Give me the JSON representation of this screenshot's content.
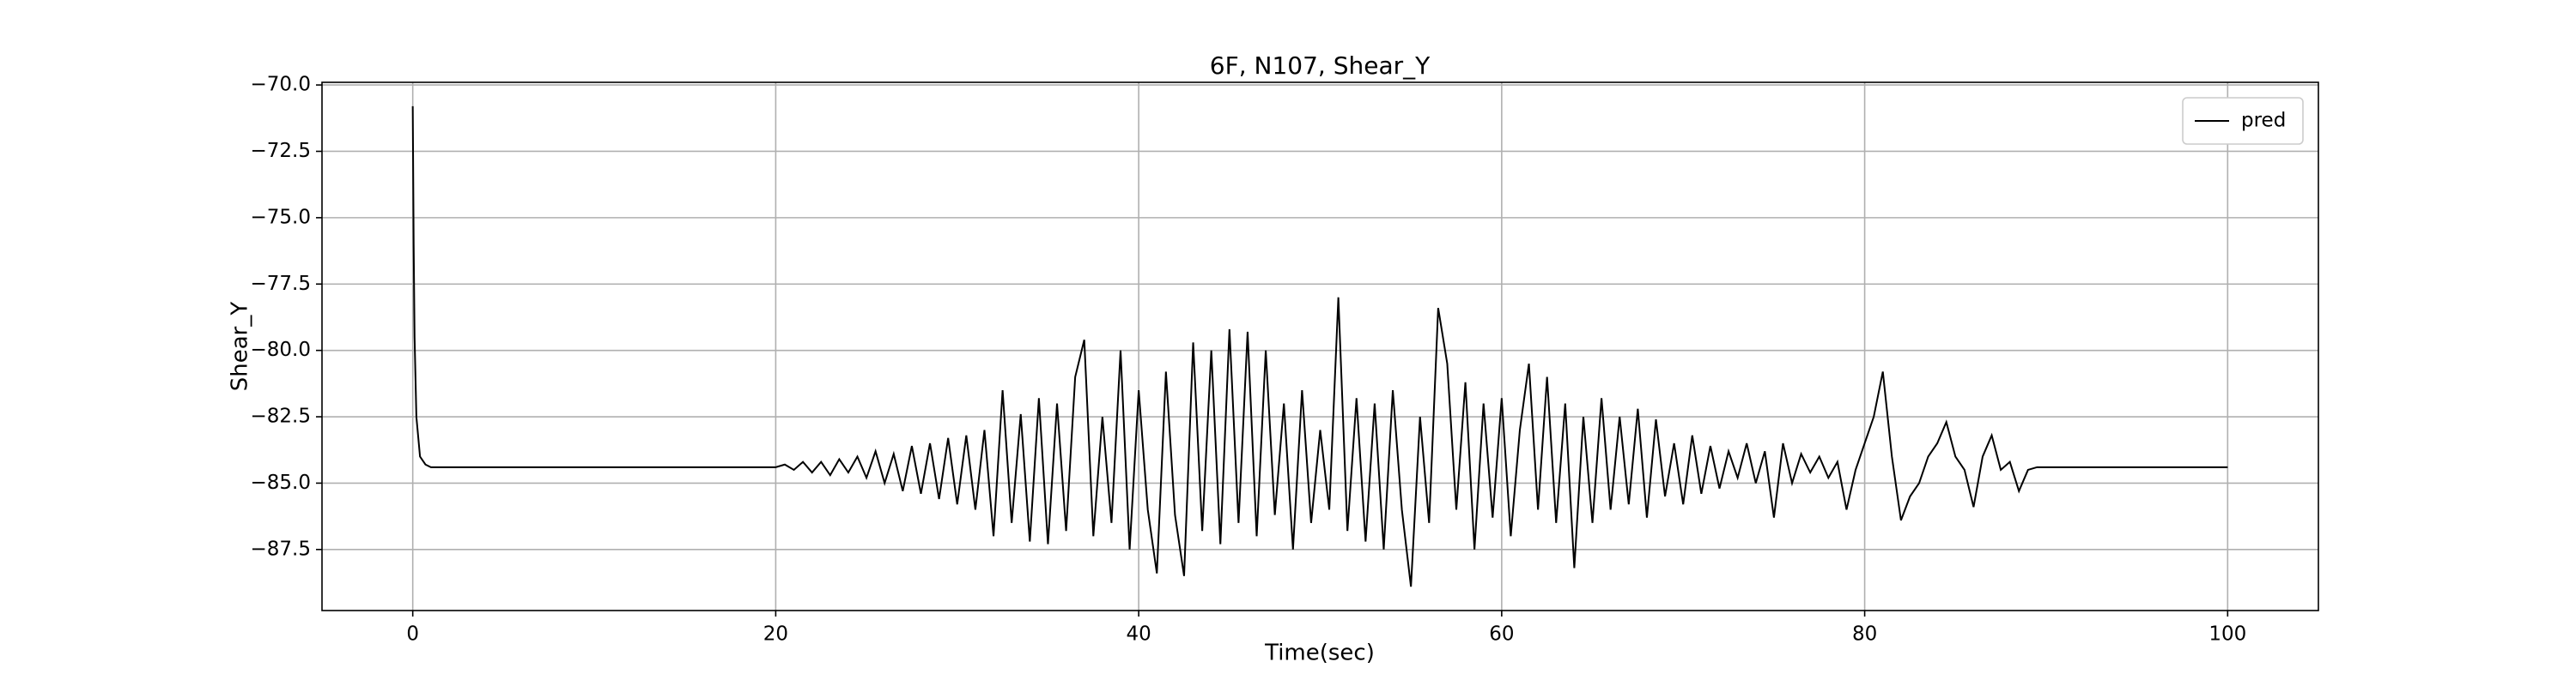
{
  "chart_data": {
    "type": "line",
    "title": "6F, N107, Shear_Y",
    "xlabel": "Time(sec)",
    "ylabel": "Shear_Y",
    "x": [
      0,
      0.05,
      0.1,
      0.2,
      0.4,
      0.7,
      1,
      2,
      3,
      4,
      5,
      6,
      7,
      8,
      9,
      10,
      11,
      12,
      13,
      14,
      15,
      16,
      17,
      18,
      19,
      20,
      20.5,
      21,
      21.5,
      22,
      22.5,
      23,
      23.5,
      24,
      24.5,
      25,
      25.5,
      26,
      26.5,
      27,
      27.5,
      28,
      28.5,
      29,
      29.5,
      30,
      30.5,
      31,
      31.5,
      32,
      32.5,
      33,
      33.5,
      34,
      34.5,
      35,
      35.5,
      36,
      36.5,
      37,
      37.5,
      38,
      38.5,
      39,
      39.5,
      40,
      40.5,
      41,
      41.5,
      42,
      42.5,
      43,
      43.5,
      44,
      44.5,
      45,
      45.5,
      46,
      46.5,
      47,
      47.5,
      48,
      48.5,
      49,
      49.5,
      50,
      50.5,
      51,
      51.5,
      52,
      52.5,
      53,
      53.5,
      54,
      54.5,
      55,
      55.5,
      56,
      56.5,
      57,
      57.5,
      58,
      58.5,
      59,
      59.5,
      60,
      60.5,
      61,
      61.5,
      62,
      62.5,
      63,
      63.5,
      64,
      64.5,
      65,
      65.5,
      66,
      66.5,
      67,
      67.5,
      68,
      68.5,
      69,
      69.5,
      70,
      70.5,
      71,
      71.5,
      72,
      72.5,
      73,
      73.5,
      74,
      74.5,
      75,
      75.5,
      76,
      76.5,
      77,
      77.5,
      78,
      78.5,
      79,
      79.5,
      80,
      80.5,
      81,
      81.5,
      82,
      82.5,
      83,
      83.5,
      84,
      84.5,
      85,
      85.5,
      86,
      86.5,
      87,
      87.5,
      88,
      88.5,
      89,
      89.5,
      90,
      91,
      92,
      93,
      94,
      95,
      96,
      97,
      98,
      99,
      100
    ],
    "series": [
      {
        "name": "pred",
        "color": "#000000",
        "values": [
          -70.8,
          -76,
          -79.5,
          -82.5,
          -84.0,
          -84.3,
          -84.4,
          -84.4,
          -84.4,
          -84.4,
          -84.4,
          -84.4,
          -84.4,
          -84.4,
          -84.4,
          -84.4,
          -84.4,
          -84.4,
          -84.4,
          -84.4,
          -84.4,
          -84.4,
          -84.4,
          -84.4,
          -84.4,
          -84.4,
          -84.3,
          -84.5,
          -84.2,
          -84.6,
          -84.2,
          -84.7,
          -84.1,
          -84.6,
          -84.0,
          -84.8,
          -83.8,
          -85.0,
          -83.9,
          -85.3,
          -83.6,
          -85.4,
          -83.5,
          -85.6,
          -83.3,
          -85.8,
          -83.2,
          -86.0,
          -83.0,
          -87.0,
          -81.5,
          -86.5,
          -82.4,
          -87.2,
          -81.8,
          -87.3,
          -82.0,
          -86.8,
          -81.0,
          -79.6,
          -87.0,
          -82.5,
          -86.5,
          -80.0,
          -87.5,
          -81.5,
          -86.0,
          -88.4,
          -80.8,
          -86.2,
          -88.5,
          -79.7,
          -86.8,
          -80.0,
          -87.3,
          -79.2,
          -86.5,
          -79.3,
          -87.0,
          -80.0,
          -86.2,
          -82.0,
          -87.5,
          -81.5,
          -86.5,
          -83.0,
          -86.0,
          -78.0,
          -86.8,
          -81.8,
          -87.2,
          -82.0,
          -87.5,
          -81.5,
          -86.0,
          -88.9,
          -82.5,
          -86.5,
          -78.4,
          -80.5,
          -86.0,
          -81.2,
          -87.5,
          -82.0,
          -86.3,
          -81.8,
          -87.0,
          -83.0,
          -80.5,
          -86.0,
          -81.0,
          -86.5,
          -82.0,
          -88.2,
          -82.5,
          -86.5,
          -81.8,
          -86.0,
          -82.5,
          -85.8,
          -82.2,
          -86.3,
          -82.6,
          -85.5,
          -83.5,
          -85.8,
          -83.2,
          -85.4,
          -83.6,
          -85.2,
          -83.8,
          -84.8,
          -83.5,
          -85.0,
          -83.8,
          -86.3,
          -83.5,
          -85.0,
          -83.9,
          -84.6,
          -84.0,
          -84.8,
          -84.2,
          -86.0,
          -84.5,
          -83.5,
          -82.5,
          -80.8,
          -84.0,
          -86.4,
          -85.5,
          -85.0,
          -84.0,
          -83.5,
          -82.7,
          -84.0,
          -84.5,
          -85.9,
          -84.0,
          -83.2,
          -84.5,
          -84.2,
          -85.3,
          -84.5,
          -84.4,
          -84.4,
          -84.4,
          -84.4,
          -84.4,
          -84.4,
          -84.4,
          -84.4,
          -84.4,
          -84.4,
          -84.4,
          -84.4
        ]
      }
    ],
    "xlim": [
      -5,
      105
    ],
    "xticks": [
      0,
      20,
      40,
      60,
      80,
      100
    ],
    "ylim": [
      -89.8,
      -69.9
    ],
    "yticks": [
      {
        "value": -87.5,
        "label": "−87.5"
      },
      {
        "value": -85,
        "label": "−85.0"
      },
      {
        "value": -82.5,
        "label": "−82.5"
      },
      {
        "value": -80,
        "label": "−80.0"
      },
      {
        "value": -77.5,
        "label": "−77.5"
      },
      {
        "value": -75,
        "label": "−75.0"
      },
      {
        "value": -72.5,
        "label": "−72.5"
      },
      {
        "value": -70,
        "label": "−70.0"
      }
    ],
    "grid": true,
    "legend": "upper right"
  }
}
